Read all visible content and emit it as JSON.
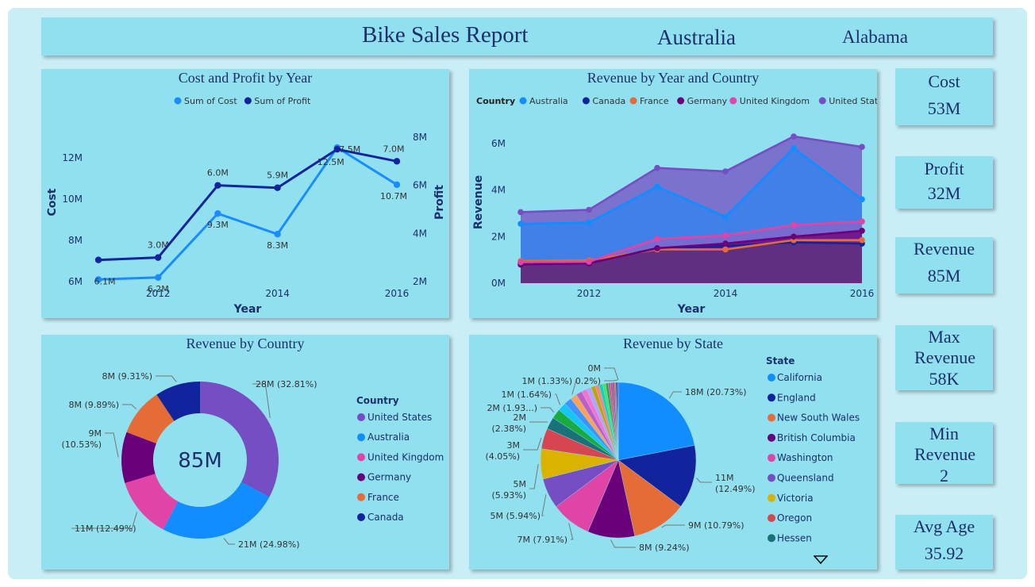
{
  "header": {
    "title": "Bike Sales Report",
    "country_slicer": "Australia",
    "state_slicer": "Alabama"
  },
  "cards": [
    {
      "label": "Cost",
      "value": "53M"
    },
    {
      "label": "Profit",
      "value": "32M"
    },
    {
      "label": "Revenue",
      "value": "85M"
    },
    {
      "label": "Max Revenue",
      "value": "58K"
    },
    {
      "label": "Min Revenue",
      "value": "2"
    },
    {
      "label": "Avg Age",
      "value": "35.92"
    }
  ],
  "chart_data": [
    {
      "type": "line",
      "title": "Cost and Profit by Year",
      "xlabel": "Year",
      "ylabel": "Cost",
      "y2label": "Profit",
      "x": [
        2011,
        2012,
        2013,
        2014,
        2015,
        2016
      ],
      "x_ticks": [
        "2012",
        "2014",
        "2016"
      ],
      "ylim": [
        6,
        13
      ],
      "y_ticks": [
        "6M",
        "8M",
        "10M",
        "12M"
      ],
      "y2lim": [
        2,
        8
      ],
      "y2_ticks": [
        "2M",
        "4M",
        "6M",
        "8M"
      ],
      "legend_position": "top",
      "series": [
        {
          "name": "Sum of Cost",
          "axis": "left",
          "color": "#1a8cff",
          "values": [
            6.1,
            6.2,
            9.3,
            8.3,
            12.5,
            10.7
          ],
          "labels": [
            "6.1M",
            "6.2M",
            "9.3M",
            "8.3M",
            "12.5M",
            "10.7M"
          ]
        },
        {
          "name": "Sum of Profit",
          "axis": "right",
          "color": "#12239e",
          "values": [
            2.9,
            3.0,
            6.0,
            5.9,
            7.5,
            7.0
          ],
          "labels": [
            "",
            "3.0M",
            "6.0M",
            "5.9M",
            "7.5M",
            "7.0M"
          ]
        }
      ]
    },
    {
      "type": "area",
      "title": "Revenue by Year and Country",
      "xlabel": "Year",
      "ylabel": "Revenue",
      "legend_title": "Country",
      "legend_position": "top",
      "x": [
        2011,
        2012,
        2013,
        2014,
        2015,
        2016
      ],
      "x_ticks": [
        "2012",
        "2014",
        "2016"
      ],
      "ylim": [
        0,
        6.3
      ],
      "y_ticks": [
        "0M",
        "2M",
        "4M",
        "6M"
      ],
      "series": [
        {
          "name": "Australia",
          "color": "#118dff",
          "values": [
            2.55,
            2.6,
            4.15,
            2.85,
            5.8,
            3.6
          ]
        },
        {
          "name": "Canada",
          "color": "#12239e",
          "values": [
            0.85,
            0.88,
            1.5,
            1.6,
            1.75,
            1.7
          ]
        },
        {
          "name": "France",
          "color": "#e66c37",
          "values": [
            0.95,
            0.98,
            1.45,
            1.45,
            1.85,
            1.85
          ]
        },
        {
          "name": "Germany",
          "color": "#6b007b",
          "values": [
            0.8,
            0.85,
            1.5,
            1.7,
            2.0,
            2.25
          ]
        },
        {
          "name": "United Kingdom",
          "color": "#e044a7",
          "values": [
            0.9,
            0.92,
            1.9,
            2.05,
            2.5,
            2.65
          ]
        },
        {
          "name": "United States",
          "color": "#744ec2",
          "values": [
            3.05,
            3.15,
            4.95,
            4.8,
            6.3,
            5.85
          ]
        }
      ]
    },
    {
      "type": "pie",
      "title": "Revenue by Country",
      "center_label": "85M",
      "legend_title": "Country",
      "legend_position": "right",
      "slices": [
        {
          "name": "United States",
          "value": 32.81,
          "label": "28M (32.81%)",
          "color": "#744ec2"
        },
        {
          "name": "Australia",
          "value": 24.98,
          "label": "21M (24.98%)",
          "color": "#118dff"
        },
        {
          "name": "United Kingdom",
          "value": 12.49,
          "label": "11M (12.49%)",
          "color": "#e044a7"
        },
        {
          "name": "Germany",
          "value": 10.53,
          "label": "9M (10.53%)",
          "color": "#6b007b"
        },
        {
          "name": "France",
          "value": 9.89,
          "label": "8M (9.89%)",
          "color": "#e66c37"
        },
        {
          "name": "Canada",
          "value": 9.31,
          "label": "8M (9.31%)",
          "color": "#12239e"
        }
      ]
    },
    {
      "type": "pie",
      "title": "Revenue by State",
      "legend_title": "State",
      "legend_position": "right",
      "slices": [
        {
          "name": "California",
          "value": 20.73,
          "label": "18M (20.73%)",
          "color": "#118dff"
        },
        {
          "name": "England",
          "value": 12.49,
          "label": "11M (12.49%)",
          "color": "#12239e"
        },
        {
          "name": "New South Wales",
          "value": 10.79,
          "label": "9M (10.79%)",
          "color": "#e66c37"
        },
        {
          "name": "British Columbia",
          "value": 9.24,
          "label": "8M (9.24%)",
          "color": "#6b007b"
        },
        {
          "name": "Washington",
          "value": 7.91,
          "label": "7M (7.91%)",
          "color": "#e044a7"
        },
        {
          "name": "Queensland",
          "value": 5.94,
          "label": "5M (5.94%)",
          "color": "#744ec2"
        },
        {
          "name": "Victoria",
          "value": 5.93,
          "label": "5M (5.93%)",
          "color": "#d9b300"
        },
        {
          "name": "Oregon",
          "value": 4.05,
          "label": "3M (4.05%)",
          "color": "#d64550"
        },
        {
          "name": "Hessen",
          "value": 2.38,
          "label": "2M (2.38%)",
          "color": "#197278"
        },
        {
          "name": "",
          "value": 1.93,
          "label": "2M (1.93...)",
          "color": "#1aab40"
        },
        {
          "name": "",
          "value": 1.64,
          "label": "1M (1.64%)",
          "color": "#15c6f4"
        },
        {
          "name": "",
          "value": 1.5,
          "label": "",
          "color": "#4092ff"
        },
        {
          "name": "",
          "value": 1.33,
          "label": "1M (1.33%)",
          "color": "#ffa058"
        },
        {
          "name": "",
          "value": 1.2,
          "label": "",
          "color": "#be5dc9"
        },
        {
          "name": "",
          "value": 1.05,
          "label": "",
          "color": "#f472d0"
        },
        {
          "name": "",
          "value": 0.95,
          "label": "",
          "color": "#b5a1ff"
        },
        {
          "name": "",
          "value": 0.85,
          "label": "",
          "color": "#c4a200"
        },
        {
          "name": "",
          "value": 0.75,
          "label": "",
          "color": "#ff8080"
        },
        {
          "name": "",
          "value": 0.7,
          "label": "",
          "color": "#00dbbc"
        },
        {
          "name": "",
          "value": 0.6,
          "label": "",
          "color": "#5bd667"
        },
        {
          "name": "",
          "value": 0.5,
          "label": "",
          "color": "#1aab40"
        },
        {
          "name": "",
          "value": 0.45,
          "label": "",
          "color": "#e044a7"
        },
        {
          "name": "",
          "value": 0.4,
          "label": "",
          "color": "#d64550"
        },
        {
          "name": "",
          "value": 0.35,
          "label": "",
          "color": "#744ec2"
        },
        {
          "name": "",
          "value": 0.3,
          "label": "",
          "color": "#e66c37"
        },
        {
          "name": "",
          "value": 0.25,
          "label": "",
          "color": "#12239e"
        },
        {
          "name": "",
          "value": 0.2,
          "label": "0.2%)",
          "color": "#6b007b"
        },
        {
          "name": "",
          "value": 0.02,
          "label": "0M",
          "color": "#118dff"
        }
      ]
    }
  ],
  "cost_profit_extra_label": "6.1M",
  "state_legend_more_icon": "caret-down-icon"
}
